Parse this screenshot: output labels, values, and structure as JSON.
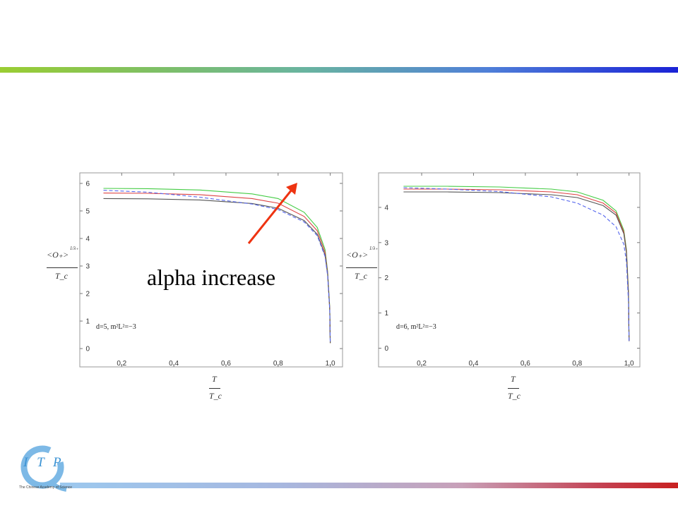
{
  "annotation": {
    "text": "alpha increase",
    "arrow_color": "#ee3311"
  },
  "colors": {
    "top_bar_start": "#9acd32",
    "top_bar_end": "#1a22d6",
    "bottom_bar_start": "#9cc8ee",
    "bottom_bar_end": "#c82020"
  },
  "logo": {
    "text": "I T P",
    "subtitle": "The Chinese Academy of Science",
    "color": "#3c93d4"
  },
  "chart_data": [
    {
      "type": "line",
      "annotation": "d=5, m²L²=−3",
      "ylabel_num": "<O₊>",
      "ylabel_exp": "1/λ₊",
      "ylabel_den": "T_c",
      "xlabel_num": "T",
      "xlabel_den": "T_c",
      "xlim": [
        0.08,
        1.02
      ],
      "ylim": [
        -0.05,
        6.05
      ],
      "xticks": [
        "0.2",
        "0.4",
        "0.6",
        "0.8",
        "1.0"
      ],
      "yticks": [
        "0",
        "1",
        "2",
        "3",
        "4",
        "5",
        "6"
      ],
      "grid": false,
      "series": [
        {
          "color": "#44cc44",
          "dashed": false,
          "x": [
            0.13,
            0.3,
            0.5,
            0.7,
            0.8,
            0.9,
            0.95,
            0.98,
            0.99,
            0.998,
            1.0
          ],
          "y": [
            5.82,
            5.81,
            5.76,
            5.62,
            5.45,
            4.95,
            4.4,
            3.6,
            2.8,
            1.5,
            0.2
          ]
        },
        {
          "color": "#dd4444",
          "dashed": false,
          "x": [
            0.13,
            0.3,
            0.5,
            0.7,
            0.8,
            0.9,
            0.95,
            0.98,
            0.99,
            0.998,
            1.0
          ],
          "y": [
            5.65,
            5.64,
            5.59,
            5.45,
            5.28,
            4.8,
            4.28,
            3.5,
            2.75,
            1.45,
            0.2
          ]
        },
        {
          "color": "#555555",
          "dashed": false,
          "x": [
            0.13,
            0.3,
            0.5,
            0.7,
            0.8,
            0.9,
            0.95,
            0.98,
            0.99,
            0.998,
            1.0
          ],
          "y": [
            5.45,
            5.44,
            5.4,
            5.27,
            5.1,
            4.65,
            4.15,
            3.4,
            2.7,
            1.4,
            0.2
          ]
        },
        {
          "color": "#5566ee",
          "dashed": true,
          "x": [
            0.13,
            0.3,
            0.5,
            0.7,
            0.8,
            0.9,
            0.95,
            0.98,
            0.99,
            0.998,
            1.0
          ],
          "y": [
            5.75,
            5.68,
            5.5,
            5.25,
            5.05,
            4.6,
            4.1,
            3.35,
            2.65,
            1.4,
            0.2
          ]
        }
      ]
    },
    {
      "type": "line",
      "annotation": "d=6, m²L²=−3",
      "ylabel_num": "<O₊>",
      "ylabel_exp": "1/λ₊",
      "ylabel_den": "T_c",
      "xlabel_num": "T",
      "xlabel_den": "T_c",
      "xlim": [
        0.08,
        1.02
      ],
      "ylim": [
        -0.05,
        4.72
      ],
      "xticks": [
        "0.2",
        "0.4",
        "0.6",
        "0.8",
        "1.0"
      ],
      "yticks": [
        "0",
        "1",
        "2",
        "3",
        "4"
      ],
      "grid": false,
      "series": [
        {
          "color": "#44cc44",
          "dashed": false,
          "x": [
            0.13,
            0.3,
            0.5,
            0.7,
            0.8,
            0.9,
            0.95,
            0.98,
            0.99,
            0.998,
            1.0
          ],
          "y": [
            4.6,
            4.6,
            4.58,
            4.52,
            4.44,
            4.2,
            3.9,
            3.35,
            2.8,
            1.6,
            0.2
          ]
        },
        {
          "color": "#dd4444",
          "dashed": false,
          "x": [
            0.13,
            0.3,
            0.5,
            0.7,
            0.8,
            0.9,
            0.95,
            0.98,
            0.99,
            0.998,
            1.0
          ],
          "y": [
            4.52,
            4.52,
            4.5,
            4.44,
            4.36,
            4.12,
            3.84,
            3.3,
            2.75,
            1.55,
            0.2
          ]
        },
        {
          "color": "#555555",
          "dashed": false,
          "x": [
            0.13,
            0.3,
            0.5,
            0.7,
            0.8,
            0.9,
            0.95,
            0.98,
            0.99,
            0.998,
            1.0
          ],
          "y": [
            4.44,
            4.44,
            4.42,
            4.36,
            4.28,
            4.05,
            3.78,
            3.25,
            2.7,
            1.5,
            0.2
          ]
        },
        {
          "color": "#5566ee",
          "dashed": true,
          "x": [
            0.13,
            0.3,
            0.5,
            0.7,
            0.8,
            0.9,
            0.95,
            0.98,
            0.99,
            0.998,
            1.0
          ],
          "y": [
            4.56,
            4.52,
            4.45,
            4.3,
            4.12,
            3.78,
            3.45,
            2.95,
            2.45,
            1.3,
            0.2
          ]
        }
      ]
    }
  ]
}
